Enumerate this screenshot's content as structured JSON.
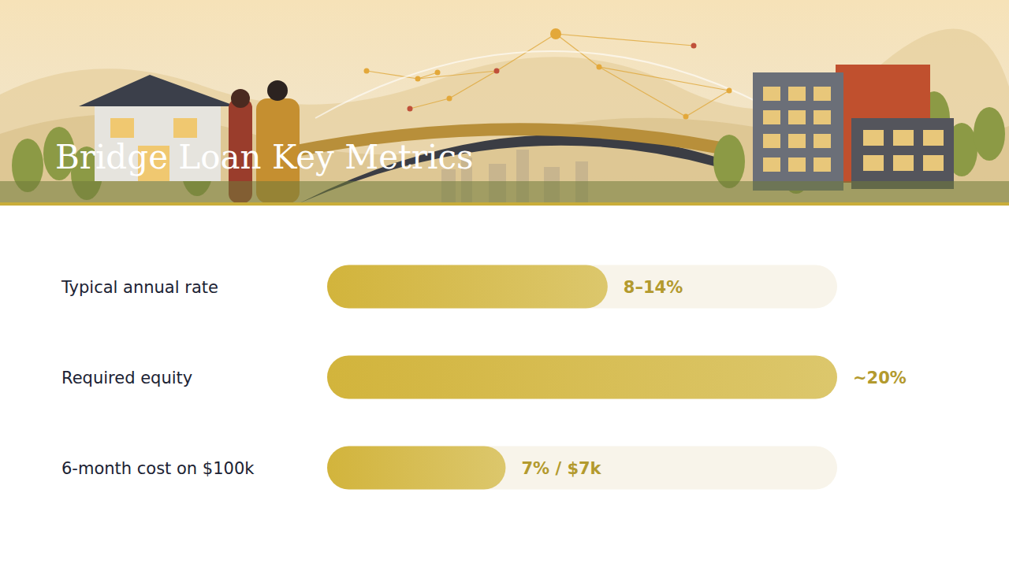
{
  "chart_data": {
    "type": "bar",
    "title": "Bridge Loan Key Metrics",
    "orientation": "horizontal",
    "categories": [
      "Typical annual rate",
      "Required equity",
      "6-month cost on $100k"
    ],
    "values": [
      11,
      20,
      7
    ],
    "value_labels": [
      "8–14%",
      "~20%",
      "7% / $7k"
    ],
    "xlim": [
      0,
      20
    ],
    "data_labels": true,
    "tick_labels": false,
    "grid": false,
    "color": "#d2b43c"
  }
}
